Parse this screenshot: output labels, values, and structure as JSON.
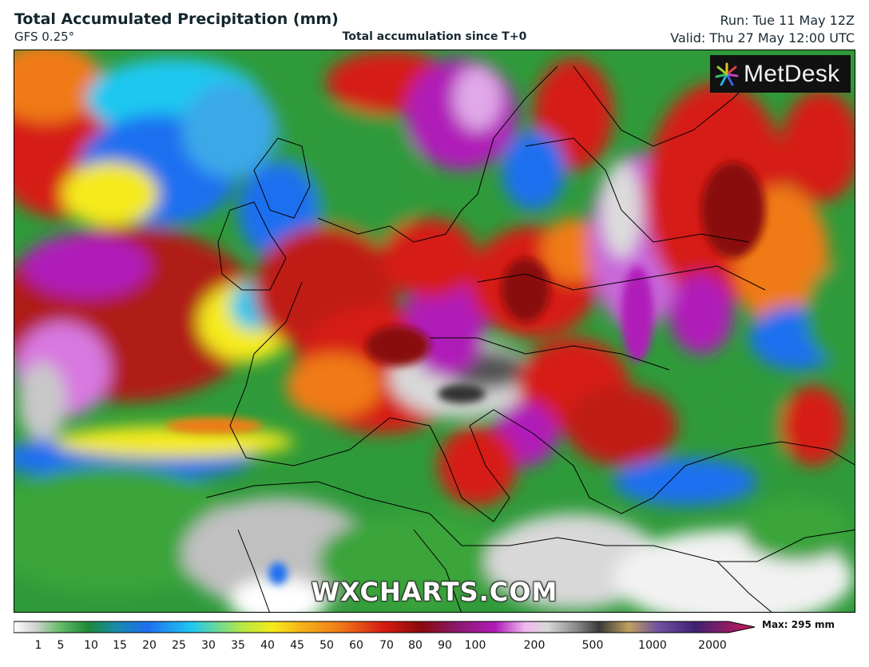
{
  "header": {
    "title": "Total Accumulated Precipitation (mm)",
    "model": "GFS 0.25°",
    "subtitle": "Total accumulation since T+0",
    "run": "Run: Tue 11 May 12Z",
    "valid": "Valid: Thu 27 May 12:00 UTC"
  },
  "logo": {
    "text": "MetDesk"
  },
  "watermark": "WXCHARTS.COM",
  "legend": {
    "ticks": [
      "1",
      "5",
      "10",
      "15",
      "20",
      "25",
      "30",
      "35",
      "40",
      "45",
      "50",
      "60",
      "70",
      "80",
      "90",
      "100",
      "200",
      "500",
      "1000",
      "2000"
    ],
    "max_label": "Max: 295 mm"
  },
  "colors": {
    "green": "#3aa43a",
    "blue": "#1e6ff0",
    "cyan": "#1ec8f0",
    "yellow": "#f5ea1a",
    "orange": "#f07a18",
    "red": "#d61a12",
    "darkred": "#8a0b0b",
    "magenta": "#b01ab8",
    "violet": "#d878e0",
    "grey": "#b8b8b8",
    "dark": "#3a3a3a"
  }
}
